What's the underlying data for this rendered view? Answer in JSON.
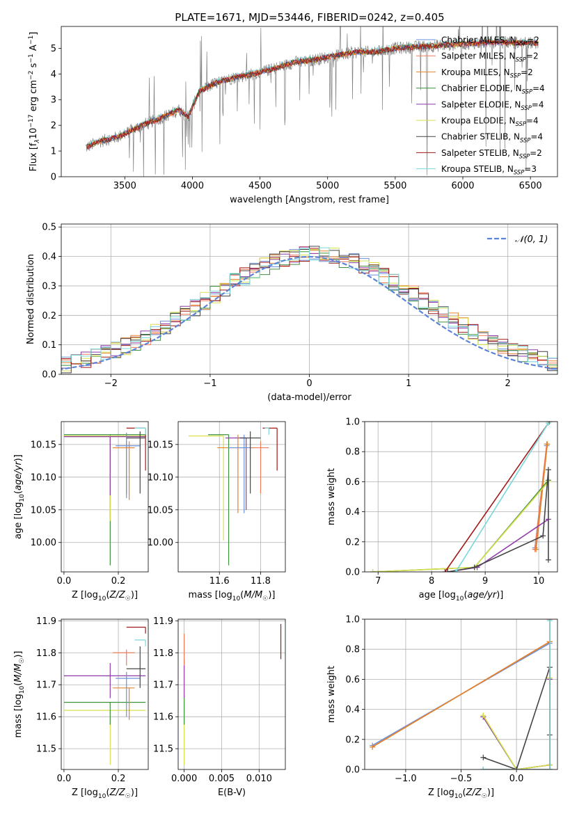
{
  "figure": {
    "title": "PLATE=1671, MJD=53446, FIBERID=0242, z=0.405",
    "models": [
      {
        "label": "Chabrier MILES, N$_{SSP}$=2",
        "legend": "Chabrier MILES, N",
        "nssp": "2",
        "color": "#6a8fd8"
      },
      {
        "label": "Salpeter MILES, N$_{SSP}$=2",
        "legend": "Salpeter MILES, N",
        "nssp": "2",
        "color": "#f17a5a"
      },
      {
        "label": "Kroupa MILES, N$_{SSP}$=2",
        "legend": "Kroupa MILES, N",
        "nssp": "2",
        "color": "#e3832a"
      },
      {
        "label": "Chabrier ELODIE, N$_{SSP}$=4",
        "legend": "Chabrier ELODIE, N",
        "nssp": "4",
        "color": "#3e8f3e"
      },
      {
        "label": "Salpeter ELODIE, N$_{SSP}$=4",
        "legend": "Salpeter ELODIE, N",
        "nssp": "4",
        "color": "#8e3aa8"
      },
      {
        "label": "Kroupa ELODIE, N$_{SSP}$=4",
        "legend": "Kroupa ELODIE, N",
        "nssp": "4",
        "color": "#d8e04a"
      },
      {
        "label": "Chabrier STELIB, N$_{SSP}$=4",
        "legend": "Chabrier STELIB, N",
        "nssp": "4",
        "color": "#444444"
      },
      {
        "label": "Salpeter STELIB, N$_{SSP}$=2",
        "legend": "Salpeter STELIB, N",
        "nssp": "2",
        "color": "#a01818"
      },
      {
        "label": "Kroupa STELIB, N$_{SSP}$=3",
        "legend": "Kroupa STELIB, N",
        "nssp": "3",
        "color": "#7ad8d8"
      }
    ],
    "ssp_subscript": "SSP"
  },
  "chart_data": [
    {
      "id": "spectrum",
      "type": "line",
      "xlabel": "wavelength [Angstrom, rest frame]",
      "ylabel_parts": [
        "Flux [f",
        "λ",
        "10",
        "−17",
        " erg cm",
        "−2",
        " s",
        "−1",
        " A",
        "−1",
        "]"
      ],
      "xlim": [
        3030,
        6700
      ],
      "ylim": [
        0,
        5.85
      ],
      "xticks": [
        3500,
        4000,
        4500,
        5000,
        5500,
        6000,
        6500
      ],
      "yticks": [
        0,
        1,
        2,
        3,
        4,
        5
      ],
      "legend_loc": "upper right",
      "data_color": "#808080",
      "continuum_nodes": {
        "x": [
          3220,
          3300,
          3450,
          3550,
          3650,
          3800,
          3900,
          3970,
          4050,
          4150,
          4300,
          4450,
          4600,
          4750,
          4900,
          5050,
          5200,
          5350,
          5500,
          5650,
          5800,
          5950,
          6100,
          6250,
          6400,
          6560
        ],
        "y": [
          1.15,
          1.35,
          1.55,
          1.8,
          2.05,
          2.35,
          2.6,
          2.35,
          3.3,
          3.6,
          3.85,
          4.0,
          4.2,
          4.45,
          4.55,
          4.7,
          4.85,
          4.85,
          5.0,
          5.05,
          5.1,
          5.15,
          5.2,
          5.25,
          5.2,
          5.2
        ]
      }
    },
    {
      "id": "residuals",
      "type": "histogram",
      "xlabel": "(data-model)/error",
      "ylabel": "Normed distribution",
      "xlim": [
        -2.5,
        2.5
      ],
      "ylim": [
        0,
        0.51
      ],
      "xticks": [
        -2,
        -1,
        0,
        1,
        2
      ],
      "yticks": [
        0.0,
        0.1,
        0.2,
        0.3,
        0.4,
        0.5
      ],
      "grid": true,
      "bin_width": 0.1,
      "gaussian": {
        "label": "𝒩(0, 1)",
        "mean": 0,
        "sigma": 1,
        "color": "#5b84d6"
      },
      "legend_loc": "upper right"
    },
    {
      "id": "age-vs-Z",
      "type": "errorbar",
      "xlabel": "Z [log10(Z/Z☉)]",
      "ylabel": "age  [log10(age/yr)]",
      "xlim": [
        -0.01,
        0.31
      ],
      "ylim": [
        9.955,
        10.185
      ],
      "xticks": [
        0.0,
        0.2
      ],
      "yticks": [
        10.0,
        10.05,
        10.1,
        10.15
      ],
      "points": [
        {
          "m": 3,
          "x": 0.17,
          "y": 10.165,
          "xerr": [
            0.17,
            0.13
          ],
          "yerr": [
            0.2,
            0.0
          ]
        },
        {
          "m": 5,
          "x": 0.17,
          "y": 10.163,
          "xerr": [
            0.17,
            0.13
          ],
          "yerr": [
            0.13,
            0.0
          ]
        },
        {
          "m": 4,
          "x": 0.17,
          "y": 10.162,
          "xerr": [
            0.17,
            0.13
          ],
          "yerr": [
            0.09,
            0.0
          ]
        },
        {
          "m": 1,
          "x": 0.23,
          "y": 10.145,
          "xerr": [
            0.05,
            0.03
          ],
          "yerr": [
            0.07,
            0.01
          ]
        },
        {
          "m": 2,
          "x": 0.24,
          "y": 10.145,
          "xerr": [
            0.06,
            0.02
          ],
          "yerr": [
            0.08,
            0.01
          ]
        },
        {
          "m": 0,
          "x": 0.23,
          "y": 10.148,
          "xerr": [
            0.04,
            0.05
          ],
          "yerr": [
            0.08,
            0.02
          ]
        },
        {
          "m": 7,
          "x": 0.3,
          "y": 10.175,
          "xerr": [
            0.07,
            0.0
          ],
          "yerr": [
            0.065,
            0.0
          ]
        },
        {
          "m": 6,
          "x": 0.28,
          "y": 10.16,
          "xerr": [
            0.05,
            0.02
          ],
          "yerr": [
            0.085,
            0.01
          ]
        },
        {
          "m": 8,
          "x": 0.3,
          "y": 10.175,
          "xerr": [
            0.04,
            0.0
          ],
          "yerr": [
            0.01,
            0.0
          ]
        }
      ]
    },
    {
      "id": "age-vs-mass",
      "type": "errorbar",
      "xlabel": "mass [log10(M/M☉)]",
      "ylabel": "",
      "xlim": [
        11.4,
        11.92
      ],
      "ylim": [
        9.955,
        10.185
      ],
      "xticks": [
        11.6,
        11.8
      ],
      "yticks": [
        10.0,
        10.05,
        10.1,
        10.15
      ],
      "points": [
        {
          "m": 5,
          "x": 11.62,
          "y": 10.163,
          "xerr": [
            0.17,
            0.0
          ],
          "yerr": [
            0.16,
            0.0
          ]
        },
        {
          "m": 3,
          "x": 11.645,
          "y": 10.165,
          "xerr": [
            0.1,
            0.0
          ],
          "yerr": [
            0.2,
            0.0
          ]
        },
        {
          "m": 4,
          "x": 11.73,
          "y": 10.16,
          "xerr": [
            0.1,
            0.0
          ],
          "yerr": [
            0.11,
            0.0
          ]
        },
        {
          "m": 2,
          "x": 11.69,
          "y": 10.145,
          "xerr": [
            0.1,
            0.03
          ],
          "yerr": [
            0.1,
            0.02
          ]
        },
        {
          "m": 0,
          "x": 11.72,
          "y": 10.145,
          "xerr": [
            0.08,
            0.05
          ],
          "yerr": [
            0.1,
            0.02
          ]
        },
        {
          "m": 1,
          "x": 11.8,
          "y": 10.145,
          "xerr": [
            0.05,
            0.04
          ],
          "yerr": [
            0.07,
            0.01
          ]
        },
        {
          "m": 6,
          "x": 11.75,
          "y": 10.16,
          "xerr": [
            0.05,
            0.05
          ],
          "yerr": [
            0.085,
            0.01
          ]
        },
        {
          "m": 7,
          "x": 11.88,
          "y": 10.175,
          "xerr": [
            0.07,
            0.0
          ],
          "yerr": [
            0.065,
            0.0
          ]
        },
        {
          "m": 8,
          "x": 11.84,
          "y": 10.175,
          "xerr": [
            0.02,
            0.0
          ],
          "yerr": [
            0.01,
            0.0
          ]
        }
      ]
    },
    {
      "id": "mass-weight-vs-age",
      "type": "line",
      "xlabel": "age  [log10(age/yr)]",
      "ylabel": "mass weight",
      "xlim": [
        6.75,
        10.35
      ],
      "ylim": [
        0,
        1.0
      ],
      "xticks": [
        7,
        8,
        9,
        10
      ],
      "yticks": [
        0.0,
        0.2,
        0.4,
        0.6,
        0.8,
        1.0
      ],
      "grid": true,
      "series": [
        {
          "m": 0,
          "x": [
            9.93,
            10.15
          ],
          "y": [
            0.16,
            0.84
          ]
        },
        {
          "m": 1,
          "x": [
            9.93,
            10.15
          ],
          "y": [
            0.15,
            0.85
          ]
        },
        {
          "m": 2,
          "x": [
            9.95,
            10.16
          ],
          "y": [
            0.15,
            0.85
          ]
        },
        {
          "m": 3,
          "x": [
            6.9,
            8.8,
            10.18
          ],
          "y": [
            0.0,
            0.03,
            0.61
          ]
        },
        {
          "m": 4,
          "x": [
            8.3,
            8.85,
            10.18
          ],
          "y": [
            0.0,
            0.03,
            0.35
          ]
        },
        {
          "m": 5,
          "x": [
            6.9,
            8.8,
            10.18
          ],
          "y": [
            0.0,
            0.03,
            0.6
          ]
        },
        {
          "m": 6,
          "x": [
            8.3,
            8.8,
            10.08,
            10.18,
            10.18
          ],
          "y": [
            0.0,
            0.03,
            0.24,
            0.68,
            0.08
          ]
        },
        {
          "m": 7,
          "x": [
            8.25,
            10.2
          ],
          "y": [
            0.0,
            1.0
          ]
        },
        {
          "m": 8,
          "x": [
            8.45,
            10.18
          ],
          "y": [
            0.0,
            0.99
          ]
        }
      ]
    },
    {
      "id": "mass-vs-Z",
      "type": "errorbar",
      "xlabel": "Z [log10(Z/Z☉)]",
      "ylabel": "mass [log10(M/M☉)]",
      "xlim": [
        -0.01,
        0.31
      ],
      "ylim": [
        11.435,
        11.905
      ],
      "xticks": [
        0.0,
        0.2
      ],
      "yticks": [
        11.5,
        11.6,
        11.7,
        11.8,
        11.9
      ],
      "points": [
        {
          "m": 5,
          "x": 0.17,
          "y": 11.62,
          "xerr": [
            0.17,
            0.13
          ],
          "yerr": [
            0.17,
            0.0
          ]
        },
        {
          "m": 3,
          "x": 0.17,
          "y": 11.645,
          "xerr": [
            0.17,
            0.13
          ],
          "yerr": [
            0.07,
            0.0
          ]
        },
        {
          "m": 4,
          "x": 0.17,
          "y": 11.728,
          "xerr": [
            0.17,
            0.13
          ],
          "yerr": [
            0.07,
            0.04
          ]
        },
        {
          "m": 2,
          "x": 0.24,
          "y": 11.69,
          "xerr": [
            0.06,
            0.02
          ],
          "yerr": [
            0.1,
            0.0
          ]
        },
        {
          "m": 0,
          "x": 0.23,
          "y": 11.72,
          "xerr": [
            0.04,
            0.05
          ],
          "yerr": [
            0.12,
            0.02
          ]
        },
        {
          "m": 1,
          "x": 0.23,
          "y": 11.8,
          "xerr": [
            0.05,
            0.03
          ],
          "yerr": [
            0.04,
            0.01
          ]
        },
        {
          "m": 6,
          "x": 0.28,
          "y": 11.75,
          "xerr": [
            0.05,
            0.02
          ],
          "yerr": [
            0.06,
            0.07
          ]
        },
        {
          "m": 7,
          "x": 0.3,
          "y": 11.88,
          "xerr": [
            0.07,
            0.0
          ],
          "yerr": [
            0.02,
            0.0
          ]
        },
        {
          "m": 8,
          "x": 0.3,
          "y": 11.84,
          "xerr": [
            0.04,
            0.0
          ],
          "yerr": [
            0.02,
            0.0
          ]
        }
      ]
    },
    {
      "id": "mass-vs-ebv",
      "type": "errorbar",
      "xlabel": "E(B-V)",
      "ylabel": "",
      "xlim": [
        -0.0008,
        0.0135
      ],
      "ylim": [
        11.435,
        11.905
      ],
      "xticks": [
        0.0,
        0.005,
        0.01
      ],
      "xticklabels": [
        "0.000",
        "0.005",
        "0.010"
      ],
      "yticks": [
        11.5,
        11.6,
        11.7,
        11.8,
        11.9
      ],
      "points": [
        {
          "m": 5,
          "x": 0.0,
          "y": 11.6,
          "xerr": [
            0,
            0
          ],
          "yerr": [
            0.15,
            0.05
          ]
        },
        {
          "m": 3,
          "x": 0.0,
          "y": 11.645,
          "xerr": [
            0,
            0
          ],
          "yerr": [
            0.07,
            0.02
          ]
        },
        {
          "m": 4,
          "x": 0.0,
          "y": 11.72,
          "xerr": [
            0,
            0
          ],
          "yerr": [
            0.06,
            0.06
          ]
        },
        {
          "m": 8,
          "x": 0.0,
          "y": 11.82,
          "xerr": [
            0,
            0
          ],
          "yerr": [
            0.03,
            0.02
          ]
        },
        {
          "m": 1,
          "x": 0.0,
          "y": 11.8,
          "xerr": [
            0,
            0
          ],
          "yerr": [
            0.04,
            0.06
          ]
        },
        {
          "m": 7,
          "x": 0.0129,
          "y": 11.83,
          "xerr": [
            0,
            0
          ],
          "yerr": [
            0.05,
            0.06
          ]
        }
      ]
    },
    {
      "id": "mass-weight-vs-Z",
      "type": "line",
      "xlabel": "Z [log10(Z/Z☉)]",
      "ylabel": "mass weight",
      "xlim": [
        -1.37,
        0.37
      ],
      "ylim": [
        0,
        1.0
      ],
      "xticks": [
        -1.0,
        -0.5,
        0.0
      ],
      "yticks": [
        0.0,
        0.2,
        0.4,
        0.6,
        0.8,
        1.0
      ],
      "grid": true,
      "series": [
        {
          "m": 0,
          "x": [
            -1.3,
            0.3
          ],
          "y": [
            0.16,
            0.84
          ]
        },
        {
          "m": 1,
          "x": [
            -1.3,
            0.3
          ],
          "y": [
            0.15,
            0.85
          ]
        },
        {
          "m": 2,
          "x": [
            -1.3,
            0.3
          ],
          "y": [
            0.15,
            0.85
          ]
        },
        {
          "m": 3,
          "x": [
            -0.3,
            0.0,
            0.3,
            0.3
          ],
          "y": [
            0.35,
            0.0,
            0.03,
            0.6
          ]
        },
        {
          "m": 4,
          "x": [
            -0.3,
            0.0,
            0.3,
            0.3
          ],
          "y": [
            0.35,
            0.0,
            0.03,
            0.6
          ]
        },
        {
          "m": 5,
          "x": [
            -0.3,
            0.0,
            0.3,
            0.3
          ],
          "y": [
            0.36,
            0.0,
            0.03,
            0.61
          ]
        },
        {
          "m": 6,
          "x": [
            -0.3,
            0.0,
            0.3,
            0.3,
            0.3
          ],
          "y": [
            0.08,
            0.0,
            0.68,
            0.23,
            0.0
          ]
        },
        {
          "m": 7,
          "x": [
            -0.3,
            0.3,
            0.3
          ],
          "y": [
            0.0,
            0.0,
            1.0
          ]
        },
        {
          "m": 8,
          "x": [
            -0.3,
            0.3,
            0.3
          ],
          "y": [
            0.0,
            0.0,
            0.99
          ]
        }
      ]
    }
  ]
}
